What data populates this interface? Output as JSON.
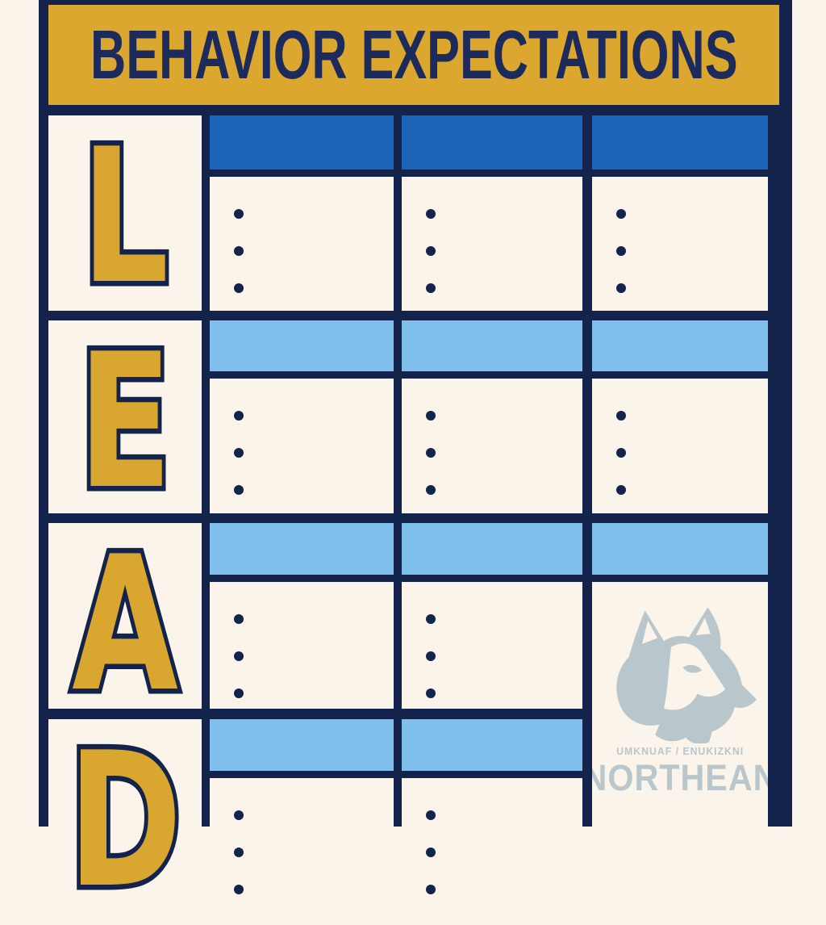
{
  "poster": {
    "title": "BEHAVIOR EXPECTATIONS",
    "acronym": "LEAD",
    "colors": {
      "background": "#FAF4EA",
      "navy": "#13234B",
      "title_navy": "#1C2B5B",
      "gold": "#DCA72E",
      "letter_gold": "#D9A62F",
      "header_blue": "#1C64B7",
      "row_blue": "#7EC0EB",
      "watermark_gray": "#B9C6CB"
    },
    "rows": [
      {
        "letter": "L",
        "header_bar_color": "#1C64B7",
        "cells": [
          {
            "bullets": 3
          },
          {
            "bullets": 3
          },
          {
            "bullets": 3
          }
        ]
      },
      {
        "letter": "E",
        "header_bar_color": "#7EC0EB",
        "cells": [
          {
            "bullets": 3
          },
          {
            "bullets": 3
          },
          {
            "bullets": 3
          }
        ]
      },
      {
        "letter": "A",
        "header_bar_color": "#7EC0EB",
        "cells": [
          {
            "bullets": 3
          },
          {
            "bullets": 3
          },
          {
            "bullets": 0,
            "watermark": true,
            "rowspan": 2
          }
        ]
      },
      {
        "letter": "D",
        "header_bar_color": "#7EC0EB",
        "cells": [
          {
            "bullets": 3
          },
          {
            "bullets": 3
          }
        ]
      }
    ],
    "watermark": {
      "icon": "husky-logo",
      "small_text": "UMKNUAF / ENUKIZKNI",
      "large_text": "NORTHEAN"
    }
  }
}
